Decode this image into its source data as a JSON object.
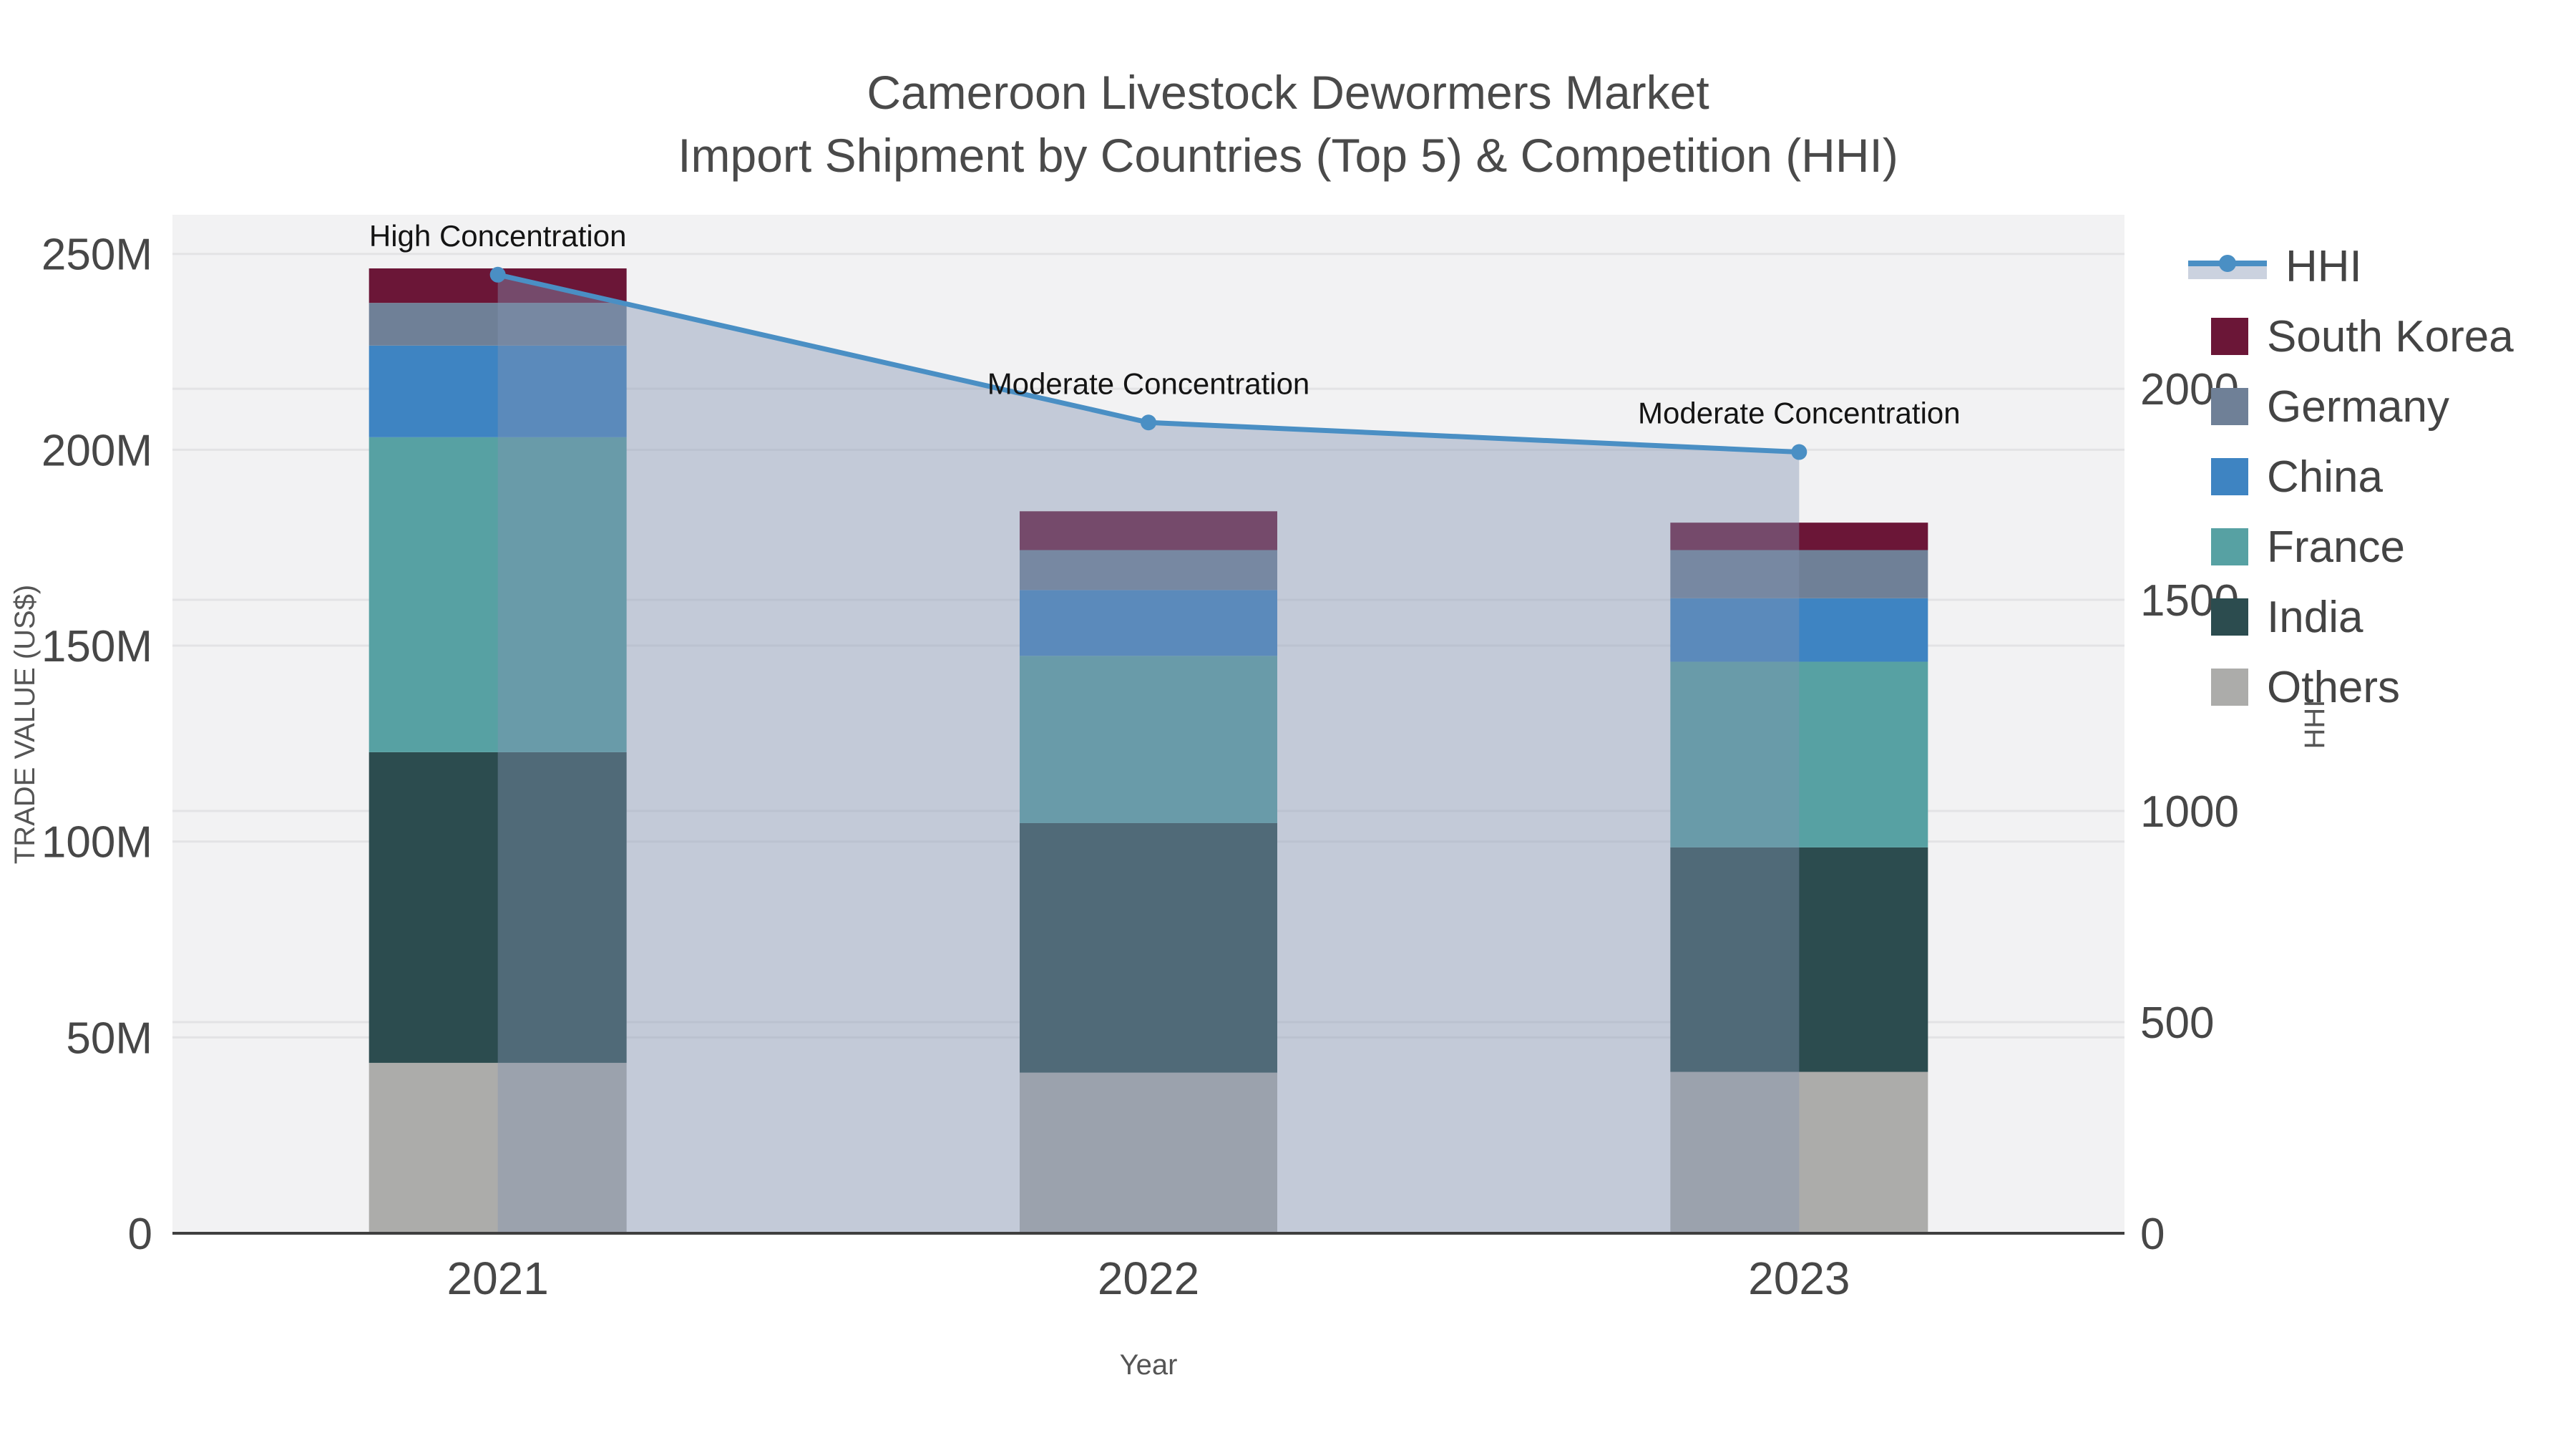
{
  "title": {
    "line1": "Cameroon Livestock Dewormers Market",
    "line2": "Import Shipment by Countries (Top 5) & Competition (HHI)"
  },
  "axes": {
    "left": {
      "title": "TRADE VALUE (US$)",
      "tick_labels": [
        "0",
        "50M",
        "100M",
        "150M",
        "200M",
        "250M"
      ],
      "tick_values": [
        0,
        50,
        100,
        150,
        200,
        250
      ],
      "range": [
        0,
        260
      ]
    },
    "right": {
      "title": "HHI",
      "tick_labels": [
        "0",
        "500",
        "1000",
        "1500",
        "2000"
      ],
      "tick_values": [
        0,
        500,
        1000,
        1500,
        2000
      ],
      "range": [
        0,
        2412
      ]
    },
    "bottom": {
      "title": "Year",
      "tick_labels": [
        "2021",
        "2022",
        "2023"
      ]
    }
  },
  "legend": {
    "items": [
      "HHI",
      "South Korea",
      "Germany",
      "China",
      "France",
      "India",
      "Others"
    ]
  },
  "annotations": [
    {
      "year": "2021",
      "text": "High Concentration"
    },
    {
      "year": "2022",
      "text": "Moderate Concentration"
    },
    {
      "year": "2023",
      "text": "Moderate Concentration"
    }
  ],
  "colors": {
    "south_korea": "#6B1637",
    "germany": "#6F8097",
    "china": "#3E84C2",
    "france": "#57A1A3",
    "india": "#2C4C4F",
    "others": "#ACACAA",
    "hhi_line": "#4A8FC4",
    "hhi_fill": "rgba(132,148,178,0.42)",
    "plot_bg": "#F2F2F3",
    "grid": "#E3E3E5",
    "axis_line": "#3f3f3f",
    "text": "#474747",
    "annotation": "#141414"
  },
  "chart_data": {
    "type": "bar",
    "subtype": "stacked-bars-with-line",
    "categories": [
      "2021",
      "2022",
      "2023"
    ],
    "series": [
      {
        "name": "Others",
        "key": "others",
        "values": [
          43.5,
          41.0,
          41.2
        ]
      },
      {
        "name": "India",
        "key": "india",
        "values": [
          79.3,
          63.7,
          57.3
        ]
      },
      {
        "name": "France",
        "key": "france",
        "values": [
          80.4,
          42.7,
          47.4
        ]
      },
      {
        "name": "China",
        "key": "china",
        "values": [
          23.4,
          16.8,
          16.2
        ]
      },
      {
        "name": "Germany",
        "key": "germany",
        "values": [
          10.9,
          10.2,
          12.3
        ]
      },
      {
        "name": "South Korea",
        "key": "south_korea",
        "values": [
          8.8,
          9.9,
          7.0
        ]
      }
    ],
    "totals": [
      246.3,
      184.3,
      181.4
    ],
    "line_series": {
      "name": "HHI",
      "values": [
        2270,
        1920,
        1850
      ],
      "axis": "right",
      "area_fill": true
    },
    "title": "Cameroon Livestock Dewormers Market — Import Shipment by Countries (Top 5) & Competition (HHI)",
    "xlabel": "Year",
    "ylabel": "TRADE VALUE (US$)",
    "ylabel_right": "HHI",
    "ylim_left": [
      0,
      260
    ],
    "ylim_right": [
      0,
      2412
    ],
    "value_unit": "M US$",
    "grid": true,
    "legend_position": "right"
  }
}
